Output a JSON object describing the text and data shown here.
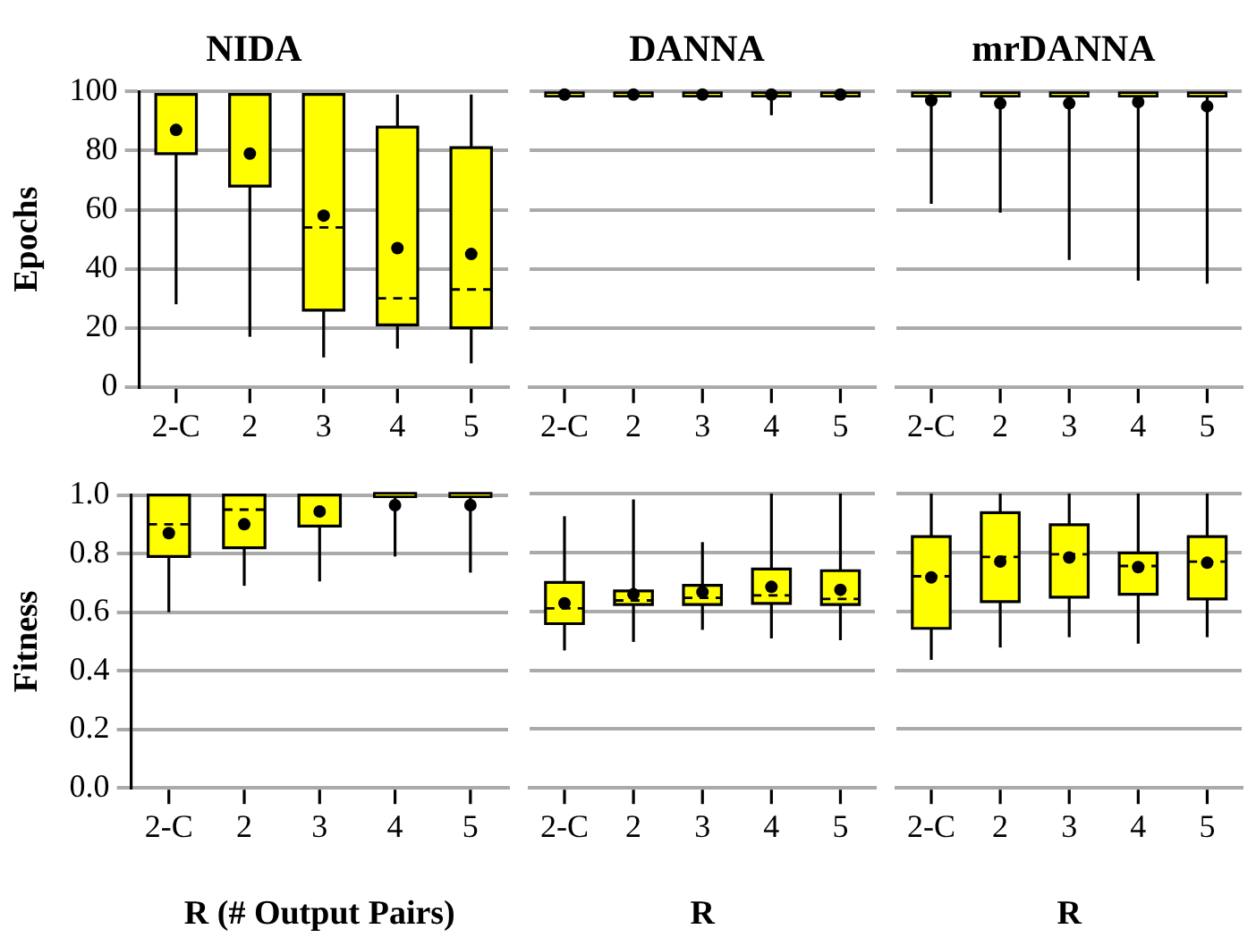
{
  "chart_data": [
    {
      "type": "box",
      "title": "NIDA",
      "ylabel": "Epochs",
      "categories": [
        "2-C",
        "2",
        "3",
        "4",
        "5"
      ],
      "color": "#ffff00",
      "ylim": [
        0,
        100
      ],
      "yticks": [
        0,
        20,
        40,
        60,
        80,
        100
      ],
      "grid": "y",
      "boxes": [
        {
          "low": 28,
          "q1": 79,
          "median": 99,
          "q3": 99,
          "high": 99,
          "mean": 87
        },
        {
          "low": 17,
          "q1": 68,
          "median": 99,
          "q3": 99,
          "high": 99,
          "mean": 79
        },
        {
          "low": 10,
          "q1": 26,
          "median": 54,
          "q3": 99,
          "high": 99,
          "mean": 58
        },
        {
          "low": 13,
          "q1": 21,
          "median": 30,
          "q3": 88,
          "high": 99,
          "mean": 47
        },
        {
          "low": 8,
          "q1": 20,
          "median": 33,
          "q3": 81,
          "high": 99,
          "mean": 45
        }
      ]
    },
    {
      "type": "box",
      "title": "DANNA",
      "categories": [
        "2-C",
        "2",
        "3",
        "4",
        "5"
      ],
      "color": "#ffff00",
      "ylim": [
        0,
        100
      ],
      "yticks": [
        0,
        20,
        40,
        60,
        80,
        100
      ],
      "grid": "y",
      "tick_labels": "x",
      "boxes": [
        {
          "low": 99,
          "q1": 99,
          "median": 99,
          "q3": 99,
          "high": 99,
          "mean": 99
        },
        {
          "low": 99,
          "q1": 99,
          "median": 99,
          "q3": 99,
          "high": 99,
          "mean": 99
        },
        {
          "low": 99,
          "q1": 99,
          "median": 99,
          "q3": 99,
          "high": 99,
          "mean": 99
        },
        {
          "low": 92,
          "q1": 99,
          "median": 99,
          "q3": 99,
          "high": 99,
          "mean": 99
        },
        {
          "low": 99,
          "q1": 99,
          "median": 99,
          "q3": 99,
          "high": 99,
          "mean": 99
        }
      ]
    },
    {
      "type": "box",
      "title": "mrDANNA",
      "categories": [
        "2-C",
        "2",
        "3",
        "4",
        "5"
      ],
      "color": "#ffff00",
      "ylim": [
        0,
        100
      ],
      "yticks": [
        0,
        20,
        40,
        60,
        80,
        100
      ],
      "grid": "y",
      "tick_labels": "x",
      "boxes": [
        {
          "low": 62,
          "q1": 99,
          "median": 99,
          "q3": 99,
          "high": 99,
          "mean": 97
        },
        {
          "low": 59,
          "q1": 99,
          "median": 99,
          "q3": 99,
          "high": 99,
          "mean": 96
        },
        {
          "low": 43,
          "q1": 99,
          "median": 99,
          "q3": 99,
          "high": 99,
          "mean": 96
        },
        {
          "low": 36,
          "q1": 99,
          "median": 99,
          "q3": 99,
          "high": 99,
          "mean": 96.5
        },
        {
          "low": 35,
          "q1": 99,
          "median": 99,
          "q3": 99,
          "high": 99,
          "mean": 95
        }
      ]
    },
    {
      "type": "box",
      "ylabel": "Fitness",
      "xlabel": "R (# Output Pairs)",
      "categories": [
        "2-C",
        "2",
        "3",
        "4",
        "5"
      ],
      "color": "#ffff00",
      "ylim": [
        0,
        1
      ],
      "yticks": [
        {
          "value": 0,
          "label": "0.0"
        },
        0.2,
        0.4,
        0.6,
        0.8,
        {
          "value": 1,
          "label": "1.0"
        }
      ],
      "grid": "y",
      "boxes": [
        {
          "low": 0.6,
          "q1": 0.79,
          "median": 0.9,
          "q3": 1,
          "high": 1,
          "mean": 0.87
        },
        {
          "low": 0.69,
          "q1": 0.82,
          "median": 0.95,
          "q3": 1,
          "high": 1,
          "mean": 0.9
        },
        {
          "low": 0.705,
          "q1": 0.894,
          "median": 1,
          "q3": 1,
          "high": 1,
          "mean": 0.944
        },
        {
          "low": 0.79,
          "q1": 1,
          "median": 1,
          "q3": 1,
          "high": 1,
          "mean": 0.965
        },
        {
          "low": 0.735,
          "q1": 1,
          "median": 1,
          "q3": 1,
          "high": 1,
          "mean": 0.965
        }
      ]
    },
    {
      "type": "box",
      "xlabel": "R",
      "categories": [
        "2-C",
        "2",
        "3",
        "4",
        "5"
      ],
      "color": "#ffff00",
      "ylim": [
        0,
        1
      ],
      "yticks": [
        0,
        0.2,
        0.4,
        0.6,
        0.8,
        1
      ],
      "grid": "y",
      "tick_labels": "x",
      "boxes": [
        {
          "low": 0.467,
          "q1": 0.558,
          "median": 0.61,
          "q3": 0.698,
          "high": 0.923,
          "mean": 0.627
        },
        {
          "low": 0.496,
          "q1": 0.623,
          "median": 0.637,
          "q3": 0.669,
          "high": 0.98,
          "mean": 0.658
        },
        {
          "low": 0.537,
          "q1": 0.623,
          "median": 0.646,
          "q3": 0.688,
          "high": 0.835,
          "mean": 0.665
        },
        {
          "low": 0.508,
          "q1": 0.627,
          "median": 0.654,
          "q3": 0.744,
          "high": 1,
          "mean": 0.683
        },
        {
          "low": 0.502,
          "q1": 0.623,
          "median": 0.642,
          "q3": 0.738,
          "high": 1,
          "mean": 0.673
        }
      ]
    },
    {
      "type": "box",
      "xlabel": "R",
      "categories": [
        "2-C",
        "2",
        "3",
        "4",
        "5"
      ],
      "color": "#ffff00",
      "ylim": [
        0,
        1
      ],
      "yticks": [
        0,
        0.2,
        0.4,
        0.6,
        0.8,
        1
      ],
      "grid": "y",
      "tick_labels": "x",
      "boxes": [
        {
          "low": 0.435,
          "q1": 0.542,
          "median": 0.719,
          "q3": 0.854,
          "high": 1,
          "mean": 0.715
        },
        {
          "low": 0.477,
          "q1": 0.633,
          "median": 0.785,
          "q3": 0.935,
          "high": 1,
          "mean": 0.769
        },
        {
          "low": 0.512,
          "q1": 0.648,
          "median": 0.794,
          "q3": 0.894,
          "high": 1,
          "mean": 0.783
        },
        {
          "low": 0.49,
          "q1": 0.658,
          "median": 0.754,
          "q3": 0.798,
          "high": 1,
          "mean": 0.75
        },
        {
          "low": 0.512,
          "q1": 0.642,
          "median": 0.769,
          "q3": 0.854,
          "high": 1,
          "mean": 0.765
        }
      ]
    }
  ]
}
